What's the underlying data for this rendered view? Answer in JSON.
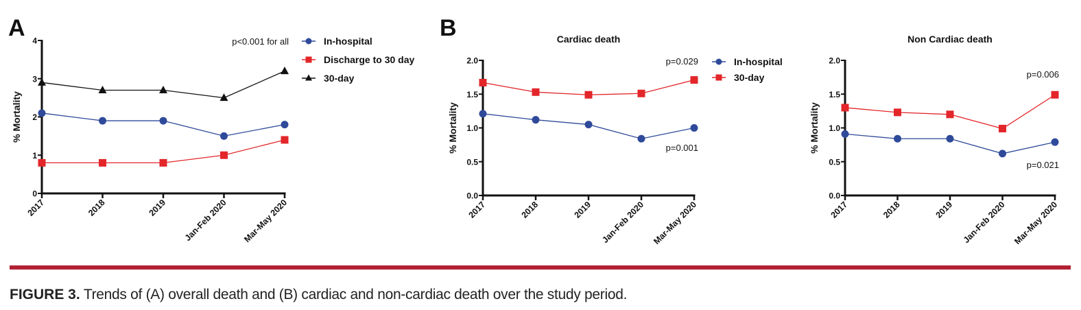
{
  "panels": {
    "a_letter": "A",
    "b_letter": "B"
  },
  "caption": {
    "label": "FIGURE 3.",
    "text": " Trends of (A) overall death and (B) cardiac and non-cardiac death over the study period."
  },
  "colors": {
    "in_hospital": "#2f4a9a",
    "red_series": "#e3262a",
    "thirty_day_black": "#111111",
    "rule": "#b22234"
  },
  "chart_data": [
    {
      "id": "A",
      "type": "line",
      "title": "",
      "xlabel": "",
      "ylabel": "% Mortality",
      "categories": [
        "2017",
        "2018",
        "2019",
        "Jan-Feb 2020",
        "Mar-May 2020"
      ],
      "ylim": [
        0,
        4
      ],
      "yticks": [
        "0",
        "1",
        "2",
        "3",
        "4"
      ],
      "ytick_values": [
        0,
        1,
        2,
        3,
        4
      ],
      "grid": false,
      "legend_position": "right",
      "annotations": [
        {
          "text": "p<0.001 for all",
          "position": "top-right"
        }
      ],
      "series": [
        {
          "name": "In-hospital",
          "marker": "circle",
          "color": "#2f4a9a",
          "values": [
            2.1,
            1.9,
            1.9,
            1.5,
            1.8
          ]
        },
        {
          "name": "Discharge to 30 day",
          "marker": "square",
          "color": "#e3262a",
          "values": [
            0.8,
            0.8,
            0.8,
            1.0,
            1.4
          ]
        },
        {
          "name": "30-day",
          "marker": "triangle",
          "color": "#111111",
          "values": [
            2.9,
            2.7,
            2.7,
            2.5,
            3.2
          ]
        }
      ]
    },
    {
      "id": "B-cardiac",
      "type": "line",
      "title": "Cardiac death",
      "xlabel": "",
      "ylabel": "% Mortality",
      "categories": [
        "2017",
        "2018",
        "2019",
        "Jan-Feb 2020",
        "Mar-May 2020"
      ],
      "ylim": [
        0,
        2
      ],
      "yticks": [
        "0.0",
        "0.5",
        "1.0",
        "1.5",
        "2.0"
      ],
      "ytick_values": [
        0,
        0.5,
        1.0,
        1.5,
        2.0
      ],
      "grid": false,
      "legend_position": "right",
      "annotations": [
        {
          "text": "p=0.029",
          "series": "30-day",
          "position": "top-right"
        },
        {
          "text": "p=0.001",
          "series": "In-hospital",
          "position": "right"
        }
      ],
      "series": [
        {
          "name": "In-hospital",
          "marker": "circle",
          "color": "#2f4a9a",
          "values": [
            1.21,
            1.12,
            1.05,
            0.84,
            1.0
          ]
        },
        {
          "name": "30-day",
          "marker": "square",
          "color": "#e3262a",
          "values": [
            1.67,
            1.53,
            1.49,
            1.51,
            1.71
          ]
        }
      ]
    },
    {
      "id": "B-noncardiac",
      "type": "line",
      "title": "Non Cardiac death",
      "xlabel": "",
      "ylabel": "% Mortality",
      "categories": [
        "2017",
        "2018",
        "2019",
        "Jan-Feb 2020",
        "Mar-May 2020"
      ],
      "ylim": [
        0,
        2
      ],
      "yticks": [
        "0.0",
        "0.5",
        "1.0",
        "1.5",
        "2.0"
      ],
      "ytick_values": [
        0,
        0.5,
        1.0,
        1.5,
        2.0
      ],
      "grid": false,
      "legend_position": "none",
      "annotations": [
        {
          "text": "p=0.006",
          "series": "30-day",
          "position": "top-right"
        },
        {
          "text": "p=0.021",
          "series": "In-hospital",
          "position": "right"
        }
      ],
      "series": [
        {
          "name": "In-hospital",
          "marker": "circle",
          "color": "#2f4a9a",
          "values": [
            0.91,
            0.84,
            0.84,
            0.62,
            0.79
          ]
        },
        {
          "name": "30-day",
          "marker": "square",
          "color": "#e3262a",
          "values": [
            1.3,
            1.23,
            1.2,
            0.99,
            1.49
          ]
        }
      ]
    }
  ]
}
